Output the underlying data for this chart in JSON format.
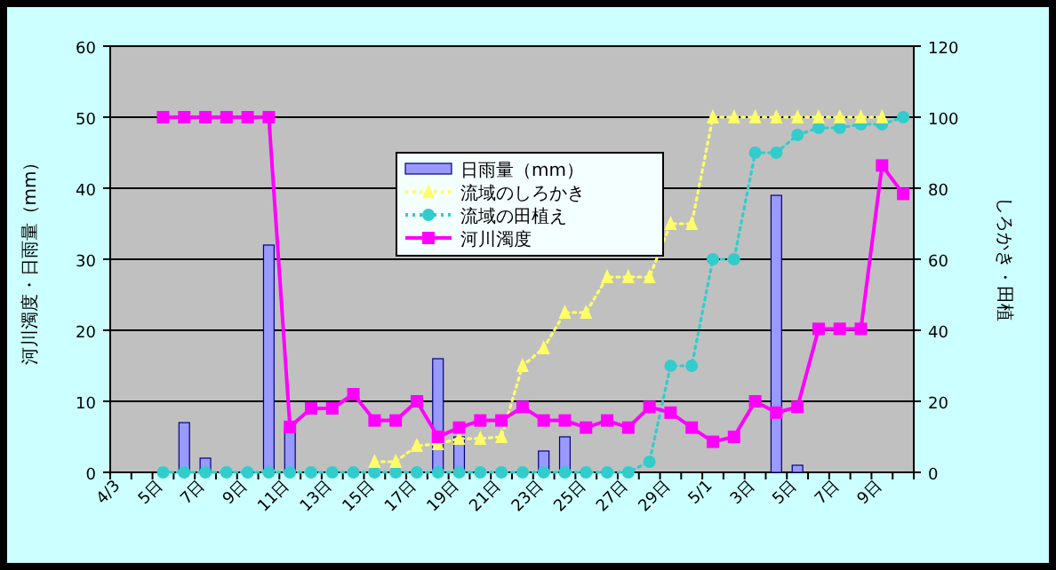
{
  "chart_data": {
    "type": "bar",
    "ylabel": "河川濁度・日雨量（mm）",
    "y2label": "しろかき・田植",
    "categories": [
      "4/3",
      null,
      "5日",
      null,
      "7日",
      null,
      "9日",
      null,
      "11日",
      null,
      "13日",
      null,
      "15日",
      null,
      "17日",
      null,
      "19日",
      null,
      "21日",
      null,
      "23日",
      null,
      "25日",
      null,
      "27日",
      null,
      "29日",
      null,
      "5/1",
      null,
      "3日",
      null,
      "5日",
      null,
      "7日",
      null,
      "9日",
      null
    ],
    "series": [
      {
        "name": "日雨量（mm）",
        "color": "#9999ff",
        "values": [
          0,
          0,
          0,
          7,
          2,
          0,
          0,
          32,
          6,
          0,
          0,
          0,
          0,
          0,
          0,
          16,
          5,
          0,
          0,
          0,
          3,
          5,
          0,
          0,
          0,
          0,
          0,
          0,
          0,
          0,
          0,
          39,
          1,
          0,
          0,
          0,
          0,
          0
        ]
      },
      {
        "name": "流域のしろかき",
        "type": "line",
        "axis": "y2",
        "color": "#ffff66",
        "marker": "triangle",
        "line_style": "dotted",
        "values": [
          null,
          null,
          null,
          null,
          null,
          null,
          null,
          null,
          null,
          null,
          null,
          null,
          3,
          3,
          7.5,
          8,
          9.5,
          9.5,
          10,
          30,
          35,
          45,
          45,
          55,
          55,
          55,
          70,
          70,
          100,
          100,
          100,
          100,
          100,
          100,
          100,
          100,
          100,
          null
        ]
      },
      {
        "name": "流域の田植え",
        "type": "line",
        "axis": "y2",
        "color": "#33cccc",
        "marker": "circle",
        "line_style": "dotted",
        "values": [
          null,
          null,
          0,
          0,
          0,
          0,
          0,
          0,
          0,
          0,
          0,
          0,
          0,
          0,
          0,
          0,
          0,
          0,
          0,
          0,
          0,
          0,
          0,
          0,
          0,
          3,
          30,
          30,
          60,
          60,
          90,
          90,
          95,
          97,
          97,
          98,
          98,
          100
        ]
      },
      {
        "name": "河川濁度",
        "type": "line",
        "color": "#ff00ff",
        "marker": "square",
        "line_style": "solid",
        "values": [
          null,
          null,
          50,
          50,
          50,
          50,
          50,
          50,
          6.4,
          9,
          9,
          11,
          7.3,
          7.3,
          10,
          5,
          6.3,
          7.3,
          7.3,
          9.2,
          7.3,
          7.3,
          6.3,
          7.3,
          6.3,
          9.2,
          8.4,
          6.3,
          4.3,
          5,
          10,
          8.4,
          9.2,
          20.2,
          20.2,
          20.2,
          43.2,
          39.2
        ]
      }
    ],
    "ylim": [
      0,
      60
    ],
    "yticks": [
      0,
      10,
      20,
      30,
      40,
      50,
      60
    ],
    "y2lim": [
      0,
      120
    ],
    "y2ticks": [
      0,
      20,
      40,
      60,
      80,
      100,
      120
    ],
    "grid": "y",
    "legend": "top"
  }
}
